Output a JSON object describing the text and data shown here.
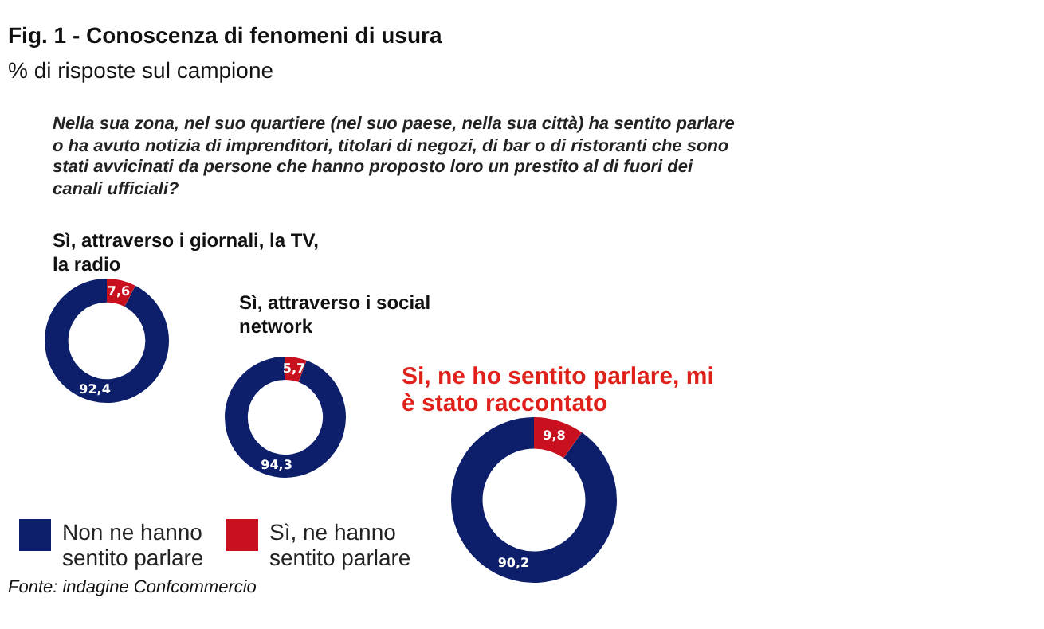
{
  "chart_data": [
    {
      "type": "other",
      "title": "Fig. 1 - Conoscenza di fenomeni di usura",
      "subtitle": "% di risposte sul campione",
      "annotations": [
        "Nella sua zona, nel suo quartiere (nel suo paese, nella sua città) ha sentito parlare o ha avuto notizia di imprenditori, titolari di negozi, di bar o di ristoranti che sono stati avvicinati da persone che hanno proposto  loro un prestito  al di fuori dei canali ufficiali?",
        "Fonte: indagine Confcommercio"
      ]
    },
    {
      "type": "donut",
      "categories": [
        "Non ne hanno sentito parlare",
        "Sì, ne hanno sentito parlare"
      ],
      "colors": [
        "#0d1f6b",
        "#c8101e"
      ],
      "legend": "bottom left",
      "series": [
        {
          "name": "Sì, attraverso i giornali, la TV, la radio",
          "values": [
            92.4,
            7.6
          ],
          "value_labels": [
            "92,4",
            "7,6"
          ]
        },
        {
          "name": "Sì, attraverso i social network",
          "values": [
            94.3,
            5.7
          ],
          "value_labels": [
            "94,3",
            "5,7"
          ]
        },
        {
          "name": "Si, ne ho sentito parlare, mi è stato raccontato",
          "values": [
            90.2,
            9.8
          ],
          "value_labels": [
            "90,2",
            "9,8"
          ]
        }
      ]
    }
  ]
}
